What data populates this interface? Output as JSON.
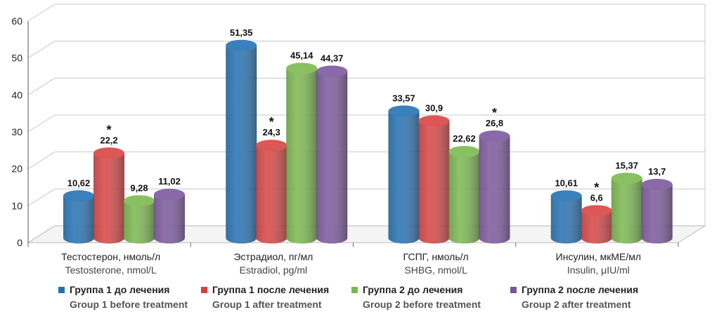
{
  "chart_data": {
    "type": "bar",
    "ylim": [
      0,
      60
    ],
    "yticks": [
      "0",
      "10",
      "20",
      "30",
      "40",
      "50",
      "60"
    ],
    "grid": true,
    "legend_position": "bottom",
    "categories": [
      {
        "ru": "Тестостерон, нмоль/л",
        "en": "Testosterone, nmol/L"
      },
      {
        "ru": "Эстрадиол, пг/мл",
        "en": "Estradiol, pg/ml"
      },
      {
        "ru": "ГСПГ, нмоль/л",
        "en": "SHBG, nmol/L"
      },
      {
        "ru": "Инсулин, мкМЕ/мл",
        "en": "Insulin, μIU/ml"
      }
    ],
    "series": [
      {
        "name": "Группа 1 до лечения",
        "name_en": "Group 1 before treatment",
        "color": "#1f6fb3",
        "values": [
          10.62,
          51.35,
          33.57,
          10.61
        ],
        "labels": [
          "10,62",
          "51,35",
          "33,57",
          "10,61"
        ]
      },
      {
        "name": "Группа 1 после лечения",
        "name_en": "Group 1 after treatment",
        "color": "#d8403f",
        "values": [
          22.2,
          24.3,
          30.9,
          6.6
        ],
        "labels": [
          "22,2",
          "24,3",
          "30,9",
          "6,6"
        ]
      },
      {
        "name": "Группа 2 до лечения",
        "name_en": "Group 2 before treatment",
        "color": "#79b84a",
        "values": [
          9.28,
          45.14,
          22.62,
          15.37
        ],
        "labels": [
          "9,28",
          "45,14",
          "22,62",
          "15,37"
        ]
      },
      {
        "name": "Группа 2 после лечения",
        "name_en": "Group 2 after treatment",
        "color": "#7a559c",
        "values": [
          11.02,
          44.37,
          26.8,
          13.7
        ],
        "labels": [
          "11,02",
          "44,37",
          "26,8",
          "13,7"
        ]
      }
    ],
    "significance_marks": [
      {
        "category": 0,
        "series": 1,
        "mark": "*"
      },
      {
        "category": 1,
        "series": 1,
        "mark": "*"
      },
      {
        "category": 2,
        "series": 3,
        "mark": "*"
      },
      {
        "category": 3,
        "series": 1,
        "mark": "*"
      }
    ]
  }
}
